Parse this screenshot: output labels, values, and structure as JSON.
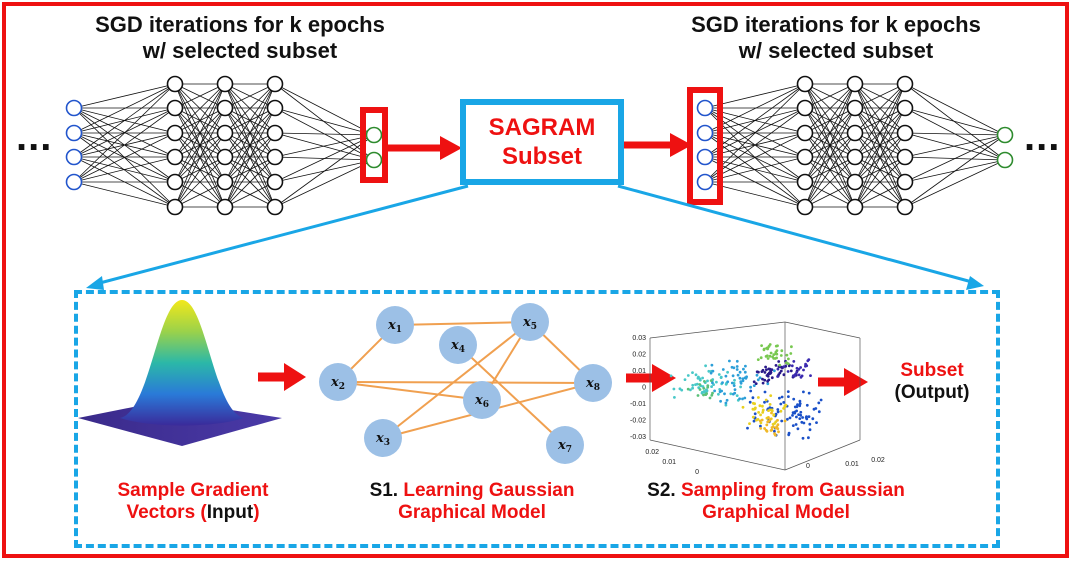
{
  "top": {
    "left_title": [
      "SGD iterations for k epochs",
      "w/ selected subset"
    ],
    "right_title": [
      "SGD iterations for k epochs",
      "w/ selected subset"
    ],
    "ellipsis": "...",
    "sagram_box": [
      "SAGRAM",
      "Subset"
    ]
  },
  "pipeline": {
    "input_caption": {
      "line1": "Sample Gradient",
      "line2_prefix": "Vectors (",
      "line2_input": "Input",
      "line2_suffix": ")"
    },
    "s1_caption": {
      "tag": "S1.",
      "line1": "Learning Gaussian",
      "line2": "Graphical Model"
    },
    "s2_caption": {
      "tag": "S2.",
      "line1": "Sampling from Gaussian",
      "line2": "Graphical Model"
    },
    "output": {
      "line1": "Subset",
      "line2": "(Output)"
    }
  },
  "graph": {
    "nodes": [
      {
        "var": "x",
        "idx": "1"
      },
      {
        "var": "x",
        "idx": "2"
      },
      {
        "var": "x",
        "idx": "3"
      },
      {
        "var": "x",
        "idx": "4"
      },
      {
        "var": "x",
        "idx": "5"
      },
      {
        "var": "x",
        "idx": "6"
      },
      {
        "var": "x",
        "idx": "7"
      },
      {
        "var": "x",
        "idx": "8"
      }
    ]
  },
  "scatter_ticks": {
    "z": [
      "0.03",
      "0.02",
      "0.01",
      "0",
      "-0.01",
      "-0.02",
      "-0.03"
    ],
    "x": [
      "0.02",
      "0.01",
      "0"
    ],
    "y": [
      "0",
      "0.01",
      "0.02"
    ]
  },
  "colors": {
    "frame_red": "#ee1111",
    "accent_blue": "#19a6e6",
    "input_neuron": "#2255cc",
    "output_neuron": "#2e8b2e",
    "graph_node": "#9cc0e6",
    "graph_edge": "#f0a050"
  }
}
